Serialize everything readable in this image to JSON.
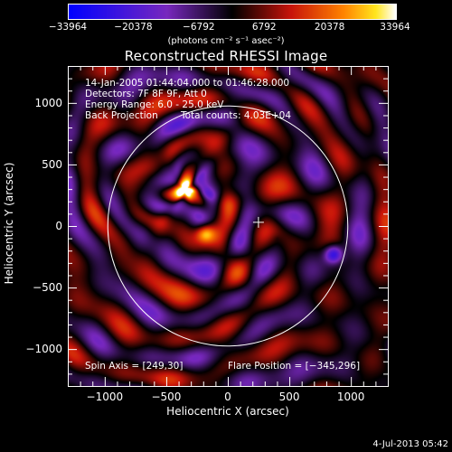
{
  "chart_data": {
    "type": "heatmap",
    "title": "Reconstructed RHESSI Image",
    "xlabel": "Heliocentric X (arcsec)",
    "ylabel": "Heliocentric Y (arcsec)",
    "xlim": [
      -1300,
      1300
    ],
    "ylim": [
      -1300,
      1300
    ],
    "x_ticks": [
      -1000,
      -500,
      0,
      500,
      1000
    ],
    "y_ticks": [
      1000,
      500,
      0,
      -500,
      -1000
    ],
    "x_tick_labels": [
      "−1000",
      "−500",
      "0",
      "500",
      "1000"
    ],
    "y_tick_labels": [
      "1000",
      "500",
      "0",
      "−500",
      "−1000"
    ],
    "colorbar": {
      "min": -33964,
      "max": 33964,
      "ticks": [
        -33964,
        -20378,
        -6792,
        6792,
        20378,
        33964
      ],
      "tick_labels": [
        "−33964",
        "−20378",
        "−6792",
        "6792",
        "20378",
        "33964"
      ],
      "unit": "(photons cm⁻² s⁻¹ asec⁻²)"
    },
    "solar_disk": {
      "center": [
        0,
        0
      ],
      "radius": 975
    },
    "sources": [
      {
        "x": -345,
        "y": 296,
        "sign": "positive",
        "strength": 1.0
      },
      {
        "x": -180,
        "y": -60,
        "sign": "positive",
        "strength": 0.75
      },
      {
        "x": 860,
        "y": -230,
        "sign": "negative",
        "strength": 0.8
      }
    ],
    "annotations": {
      "time_range": "14-Jan-2005 01:44:04.000 to 01:46:28.000",
      "detectors": "Detectors: 7F 8F 9F, Att 0",
      "energy_range": "Energy Range: 6.0 - 25.0 keV",
      "method": "Back Projection",
      "total_counts": "Total counts: 4.03E+04",
      "spin_axis": "Spin Axis = [249,30]",
      "flare_position": "Flare Position = [−345,296]"
    },
    "spin_axis": [
      249,
      30
    ],
    "flare_position": [
      -345,
      296
    ],
    "grid": false
  },
  "footer": {
    "date_stamp": "4-Jul-2013 05:42"
  }
}
